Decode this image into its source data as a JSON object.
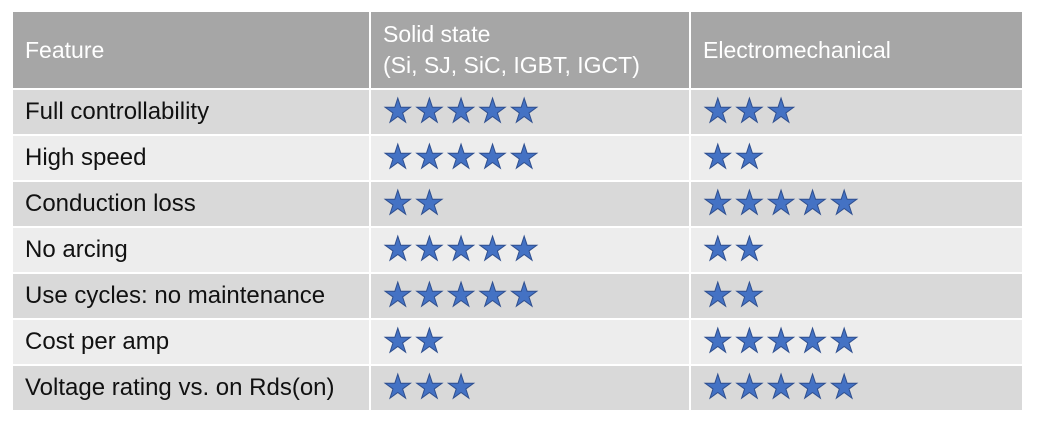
{
  "header": {
    "feature": "Feature",
    "solid_state": "Solid state",
    "solid_state_sub": "(Si, SJ, SiC, IGBT, IGCT)",
    "electromechanical": "Electromechanical"
  },
  "rating_icon": "star-icon",
  "star_color": "#4472c4",
  "rows": [
    {
      "feature": "Full controllability",
      "solid_state": 5,
      "electromechanical": 3
    },
    {
      "feature": "High speed",
      "solid_state": 5,
      "electromechanical": 2
    },
    {
      "feature": "Conduction loss",
      "solid_state": 2,
      "electromechanical": 5
    },
    {
      "feature": "No arcing",
      "solid_state": 5,
      "electromechanical": 2
    },
    {
      "feature": "Use cycles: no maintenance",
      "solid_state": 5,
      "electromechanical": 2
    },
    {
      "feature": "Cost per amp",
      "solid_state": 2,
      "electromechanical": 5
    },
    {
      "feature": "Voltage rating vs. on Rds(on)",
      "solid_state": 3,
      "electromechanical": 5
    }
  ]
}
